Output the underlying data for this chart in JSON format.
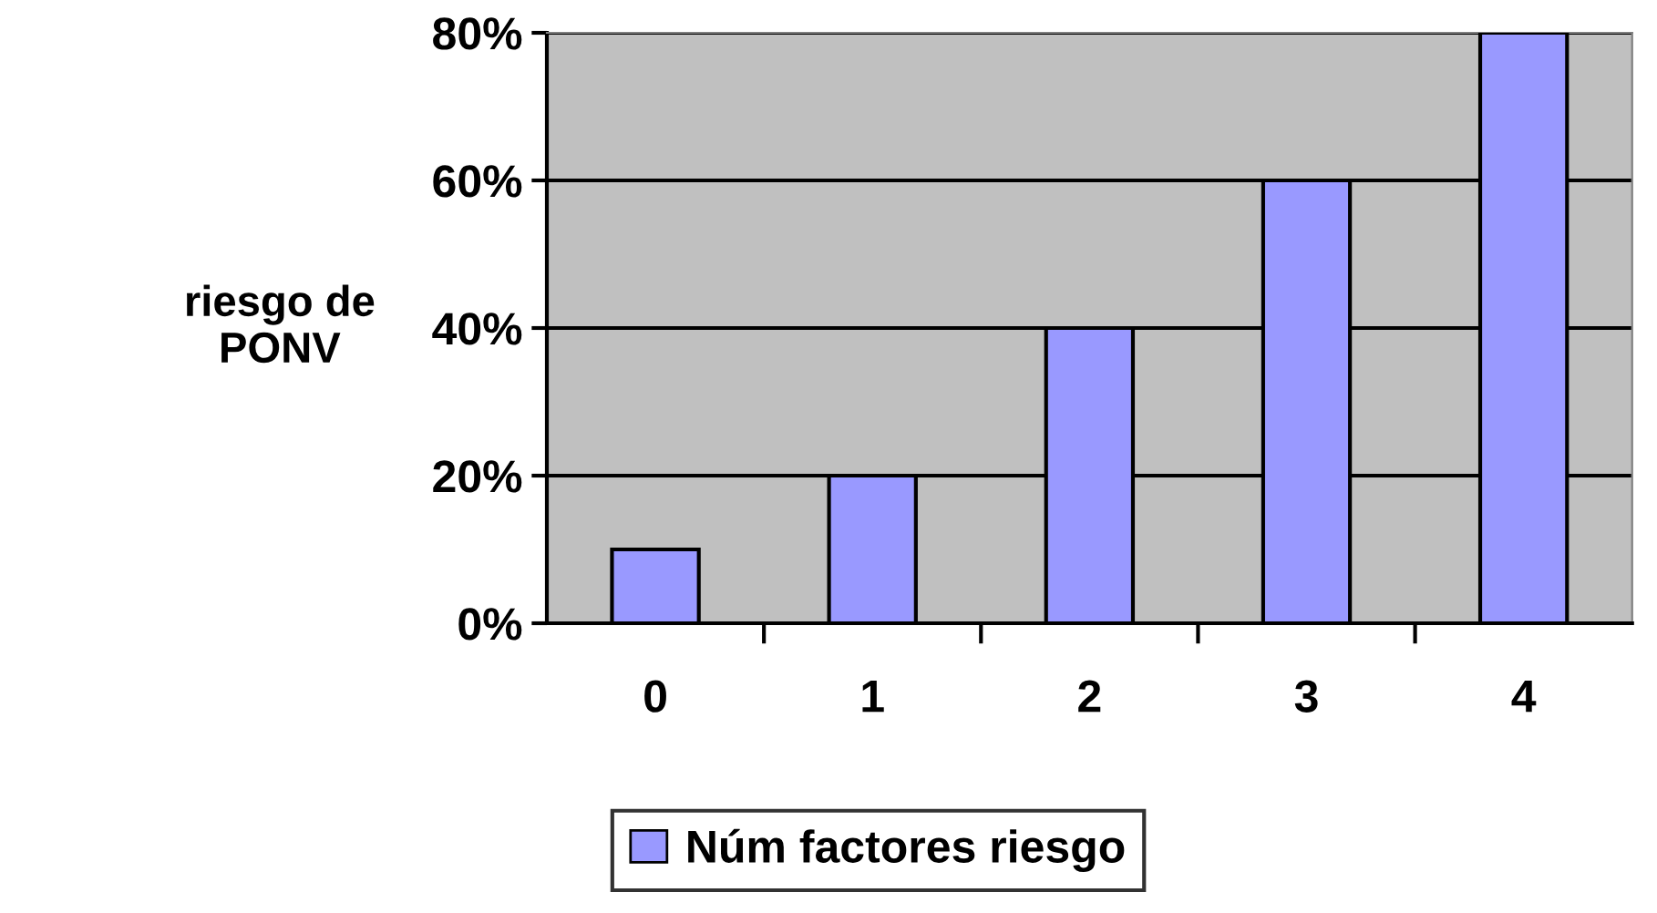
{
  "chart_data": {
    "type": "bar",
    "ylabel": "riesgo de\nPONV",
    "categories": [
      "0",
      "1",
      "2",
      "3",
      "4"
    ],
    "series": [
      {
        "name": "Núm factores riesgo",
        "color": "#9999ff",
        "values": [
          10,
          20,
          40,
          60,
          80
        ]
      }
    ],
    "ylim": [
      0,
      80
    ],
    "yticks": [
      {
        "value": 0,
        "label": "0%"
      },
      {
        "value": 20,
        "label": "20%"
      },
      {
        "value": 40,
        "label": "40%"
      },
      {
        "value": 60,
        "label": "60%"
      },
      {
        "value": 80,
        "label": "80%"
      }
    ],
    "grid": "y",
    "legend": "bottom"
  }
}
